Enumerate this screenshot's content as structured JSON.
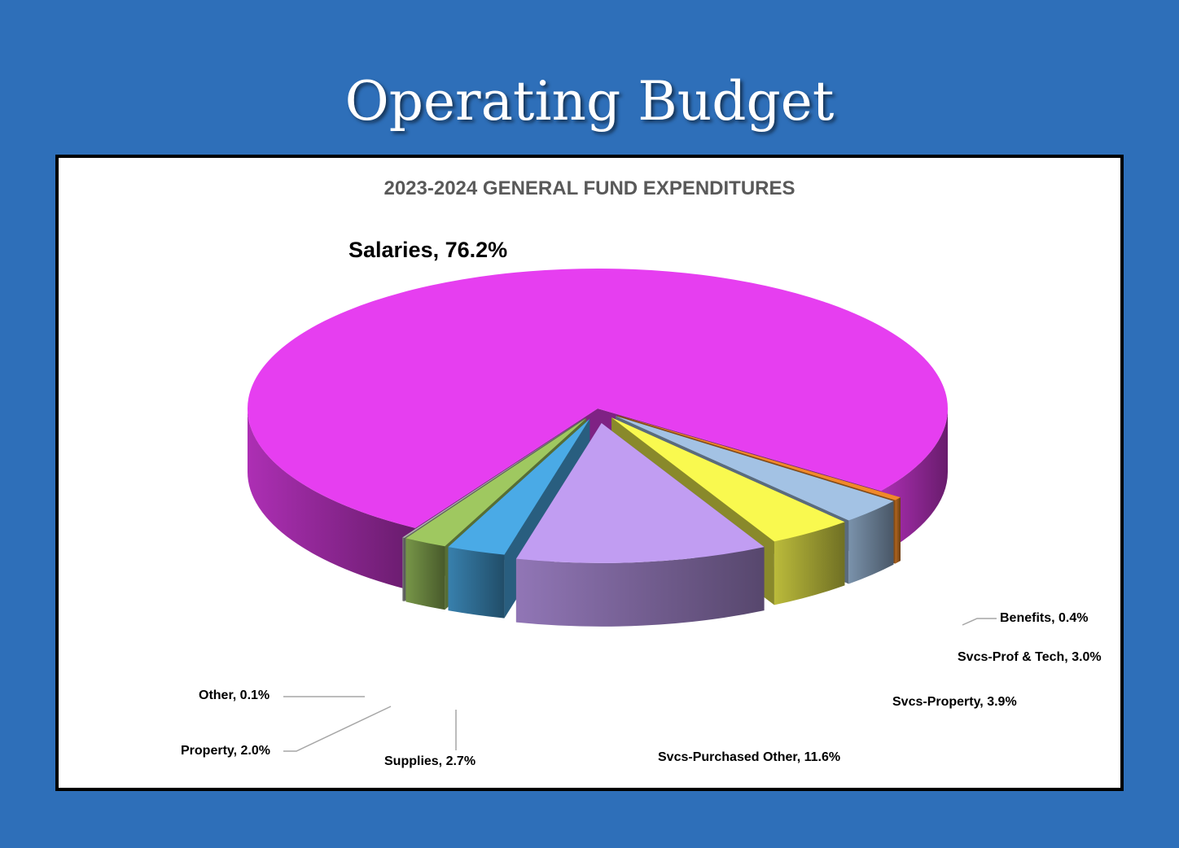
{
  "header": {
    "title": "Operating Budget"
  },
  "colors": {
    "background": "#2e6fb9",
    "frame": "#000000",
    "title_text": "#595959"
  },
  "chart_data": {
    "type": "pie",
    "title": "2023-2024 GENERAL FUND EXPENDITURES",
    "style": "3d-exploded",
    "legend": "none",
    "slices": [
      {
        "label": "Salaries, 76.2%",
        "name": "Salaries",
        "value": 76.2,
        "color": "#e63ef0"
      },
      {
        "label": "Benefits, 0.4%",
        "name": "Benefits",
        "value": 0.4,
        "color": "#f0892a"
      },
      {
        "label": "Svcs-Prof & Tech, 3.0%",
        "name": "Svcs-Prof & Tech",
        "value": 3.0,
        "color": "#a3c2e4"
      },
      {
        "label": "Svcs-Property, 3.9%",
        "name": "Svcs-Property",
        "value": 3.9,
        "color": "#f9f94f"
      },
      {
        "label": "Svcs-Purchased Other, 11.6%",
        "name": "Svcs-Purchased Other",
        "value": 11.6,
        "color": "#c19df2"
      },
      {
        "label": "Supplies, 2.7%",
        "name": "Supplies",
        "value": 2.7,
        "color": "#4aaae6"
      },
      {
        "label": "Property, 2.0%",
        "name": "Property",
        "value": 2.0,
        "color": "#9fc860"
      },
      {
        "label": "Other, 0.1%",
        "name": "Other",
        "value": 0.1,
        "color": "#b0b0b0"
      }
    ]
  }
}
